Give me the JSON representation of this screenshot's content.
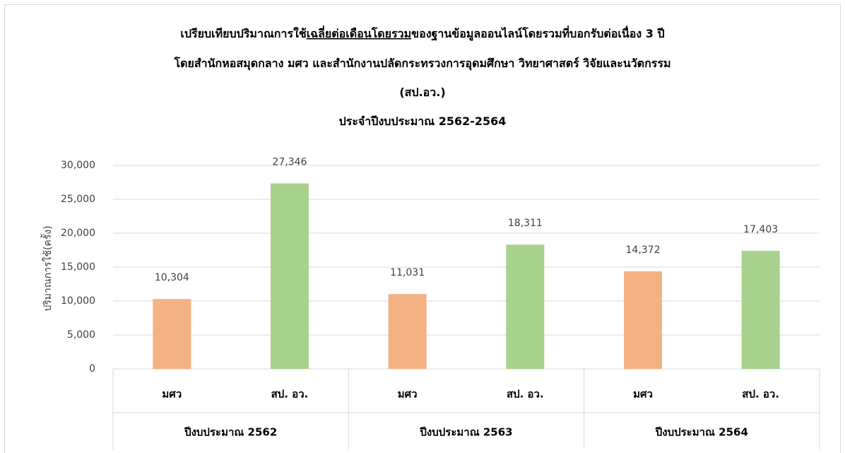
{
  "chart_data": {
    "type": "bar",
    "title": [
      [
        "เปรียบเทียบปริมาณการใช้",
        "เฉลี่ยต่อเดือนโดยรวม",
        "ของฐานข้อมูลออนไลน์โดยรวมที่บอกรับต่อเนื่อง 3 ปี"
      ],
      [
        "โดยสำนักหอสมุดกลาง มศว และสำนักงานปลัดกระทรวงการอุดมศึกษา วิทยาศาสตร์ วิจัยและนวัตกรรม"
      ],
      [
        "(สป.อว.)"
      ],
      [
        "ประจำปีงบประมาณ 2562-2564"
      ]
    ],
    "y_label": "ปริมาณการใช้(ครั้ง)",
    "groups": [
      "ปีงบประมาณ 2562",
      "ปีงบประมาณ 2563",
      "ปีงบประมาณ 2564"
    ],
    "categories": [
      "มศว",
      "สป. อว.",
      "มศว",
      "สป. อว.",
      "มศว",
      "สป. อว."
    ],
    "values": [
      10304,
      27346,
      11031,
      18311,
      14372,
      17403
    ],
    "value_labels": [
      "10,304",
      "27,346",
      "11,031",
      "18,311",
      "14,372",
      "17,403"
    ],
    "colors": [
      "#f4b183",
      "#a9d18e",
      "#f4b183",
      "#a9d18e",
      "#f4b183",
      "#a9d18e"
    ],
    "ylim": [
      0,
      30000
    ],
    "yticks": [
      0,
      {
        "value": 5000,
        "label": "5,000"
      },
      {
        "value": 10000,
        "label": "10,000"
      },
      {
        "value": 15000,
        "label": "15,000"
      },
      {
        "value": 20000,
        "label": "20,000"
      },
      {
        "value": 25000,
        "label": "25,000"
      },
      {
        "value": 30000,
        "label": "30,000"
      }
    ],
    "grid": true
  }
}
